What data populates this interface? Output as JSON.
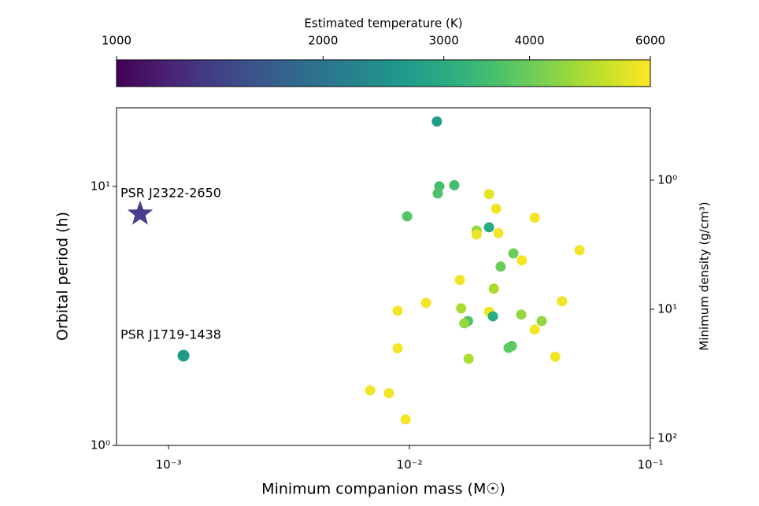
{
  "chart_data": {
    "type": "scatter",
    "xlabel": "Minimum companion mass (M☉)",
    "ylabel": "Orbital period (h)",
    "y2label": "Minimum density (g/cm³)",
    "xscale": "log",
    "yscale": "log",
    "y2scale": "log",
    "y2_inverted": true,
    "xlim": [
      0.000608,
      0.1
    ],
    "ylim": [
      1,
      20.1
    ],
    "y2lim": [
      0.275,
      113.5
    ],
    "xticks": [
      {
        "value": 0.001,
        "label": "10⁻³"
      },
      {
        "value": 0.01,
        "label": "10⁻²"
      },
      {
        "value": 0.1,
        "label": "10⁻¹"
      }
    ],
    "yticks": [
      {
        "value": 1,
        "label": "10⁰"
      },
      {
        "value": 10,
        "label": "10¹"
      }
    ],
    "y2ticks": [
      {
        "value": 1,
        "label": "10⁰"
      },
      {
        "value": 10,
        "label": "10¹"
      },
      {
        "value": 100,
        "label": "10²"
      }
    ],
    "colorbar": {
      "label": "Estimated temperature (K)",
      "lim": [
        1000,
        6000
      ],
      "ticks": [
        1000,
        2000,
        3000,
        4000,
        6000
      ],
      "scale": "log",
      "colormap": "viridis"
    },
    "x": [
      0.013,
      0.0133,
      0.01535,
      0.0131,
      0.0214,
      0.00978,
      0.0229,
      0.0331,
      0.0214,
      0.019,
      0.019,
      0.0234,
      0.0508,
      0.027,
      0.0293,
      0.0239,
      0.0162,
      0.0224,
      0.01172,
      0.043,
      0.0164,
      0.00893,
      0.0214,
      0.0222,
      0.0291,
      0.0354,
      0.0175,
      0.0169,
      0.0331,
      0.00893,
      0.0266,
      0.0258,
      0.0176,
      0.0403,
      0.00687,
      0.00822,
      0.00964
    ],
    "values": [
      17.8,
      10.0,
      10.1,
      9.39,
      9.33,
      7.66,
      8.2,
      7.57,
      6.95,
      6.75,
      6.52,
      6.6,
      5.67,
      5.51,
      5.18,
      4.9,
      4.35,
      4.03,
      3.55,
      3.6,
      3.38,
      3.31,
      3.28,
      3.15,
      3.2,
      3.02,
      3.02,
      2.96,
      2.8,
      2.37,
      2.42,
      2.38,
      2.16,
      2.2,
      1.63,
      1.59,
      1.26
    ],
    "temperature": [
      2700,
      3500,
      3500,
      3600,
      5600,
      3700,
      5800,
      5800,
      3000,
      4500,
      5700,
      5800,
      5800,
      4000,
      5800,
      4000,
      5800,
      4800,
      5800,
      5800,
      4800,
      5800,
      5800,
      3000,
      4500,
      4500,
      3600,
      4500,
      5800,
      5800,
      3800,
      3800,
      4800,
      5800,
      5800,
      5800,
      5800
    ],
    "pulsars": [
      {
        "label": "PSR J2322-2650",
        "x": 0.000762,
        "y": 7.83,
        "marker": "star",
        "color": "#483c8c"
      },
      {
        "label": "PSR J1719-1438",
        "x": 0.001153,
        "y": 2.22,
        "marker": "circle",
        "temperature": 2650
      }
    ]
  }
}
